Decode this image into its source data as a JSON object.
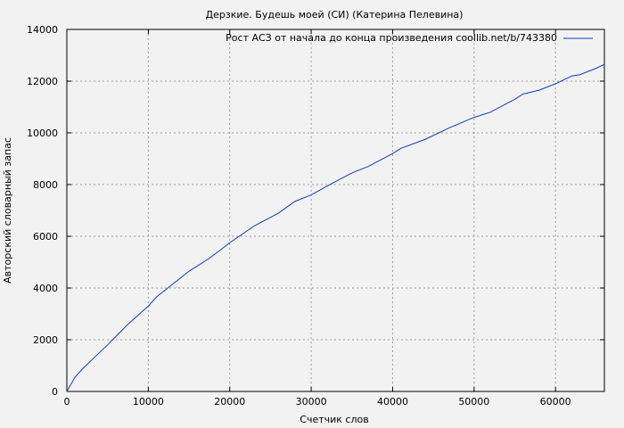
{
  "chart_data": {
    "type": "line",
    "title": "Дерзкие. Будешь моей (СИ) (Катерина Пелевина)",
    "xlabel": "Счетчик слов",
    "ylabel": "Авторский словарный запас",
    "xlim": [
      0,
      66000
    ],
    "ylim": [
      0,
      14000
    ],
    "xticks": [
      0,
      10000,
      20000,
      30000,
      40000,
      50000,
      60000
    ],
    "yticks": [
      0,
      2000,
      4000,
      6000,
      8000,
      10000,
      12000,
      14000
    ],
    "grid": true,
    "legend_position": "top-right",
    "series": [
      {
        "name": "Рост АСЗ от начала до конца произведения coollib.net/b/743380",
        "color": "#0a3fbf",
        "x": [
          0,
          1000,
          2000,
          3000,
          5000,
          7500,
          10000,
          11000,
          15000,
          17500,
          20000,
          23000,
          26000,
          28000,
          30000,
          32000,
          35000,
          37000,
          40000,
          41000,
          44000,
          47000,
          50000,
          52000,
          55000,
          56000,
          58000,
          60000,
          62000,
          63000,
          65000,
          66000
        ],
        "y": [
          0,
          550,
          900,
          1200,
          1800,
          2600,
          3300,
          3650,
          4650,
          5150,
          5750,
          6400,
          6900,
          7350,
          7600,
          7950,
          8450,
          8700,
          9200,
          9400,
          9750,
          10200,
          10600,
          10800,
          11300,
          11500,
          11650,
          11900,
          12200,
          12250,
          12500,
          12650
        ]
      }
    ]
  }
}
